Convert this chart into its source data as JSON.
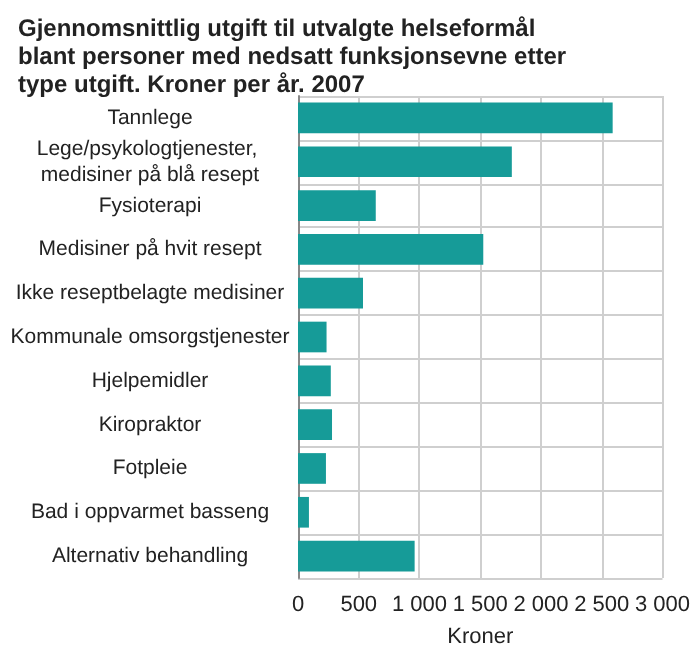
{
  "chart_data": {
    "type": "bar",
    "orientation": "horizontal",
    "title": "Gjennomsnittlig utgift til utvalgte helseformål blant personer med nedsatt funksjonsevne etter type utgift. Kroner per år. 2007",
    "xlabel": "Kroner",
    "categories": [
      "Tannlege",
      "Lege/psykologtjenester, medisiner på blå resept",
      "Fysioterapi",
      "Medisiner på hvit resept",
      "Ikke reseptbelagte medisiner",
      "Kommunale omsorgstjenester",
      "Hjelpemidler",
      "Kiropraktor",
      "Fotpleie",
      "Bad i oppvarmet basseng",
      "Alternativ behandling"
    ],
    "values": [
      2590,
      1760,
      640,
      1525,
      535,
      235,
      270,
      280,
      230,
      90,
      960
    ],
    "color": "#169b98",
    "xlim": [
      0,
      3000
    ],
    "xticks": [
      0,
      500,
      {
        "value": 1000,
        "label": "1 000"
      },
      {
        "value": 1500,
        "label": "1 500"
      },
      {
        "value": 2000,
        "label": "2 000"
      },
      {
        "value": 2500,
        "label": "2 500"
      },
      {
        "value": 3000,
        "label": "3 000"
      }
    ],
    "grid": true
  }
}
